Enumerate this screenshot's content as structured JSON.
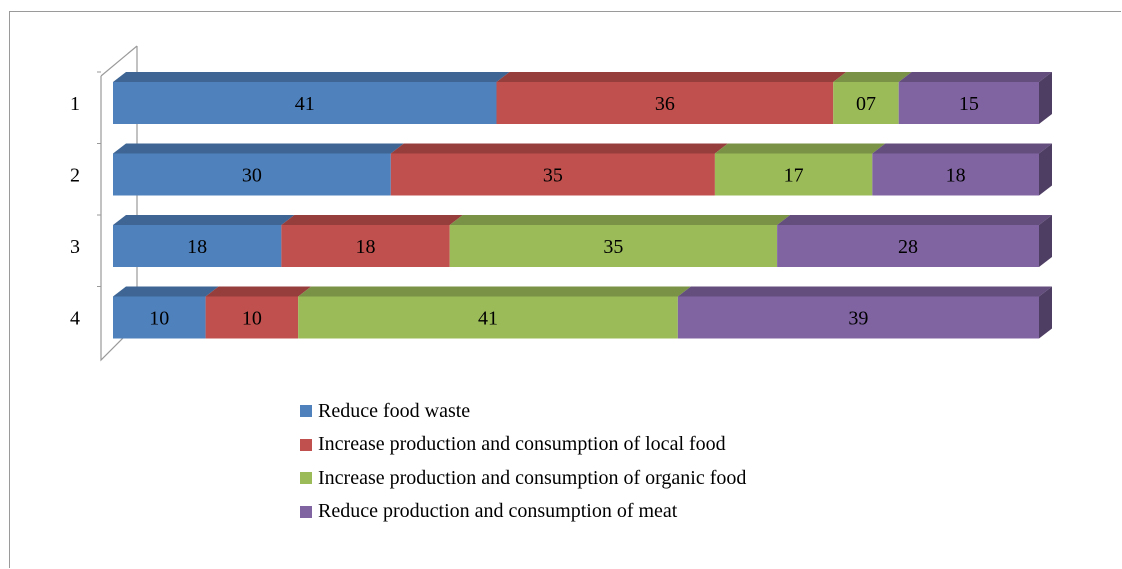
{
  "chart_data": {
    "type": "bar",
    "orientation": "horizontal",
    "stacked": true,
    "categories": [
      "1",
      "2",
      "3",
      "4"
    ],
    "series": [
      {
        "name": "Reduce food waste",
        "values": [
          41,
          30,
          18,
          10
        ],
        "labels": [
          "41",
          "30",
          "18",
          "10"
        ],
        "color": "#4f81bd"
      },
      {
        "name": "Increase production and consumption of local food",
        "values": [
          36,
          35,
          18,
          10
        ],
        "labels": [
          "36",
          "35",
          "18",
          "10"
        ],
        "color": "#c0504d"
      },
      {
        "name": "Increase production and consumption of organic food",
        "values": [
          7,
          17,
          35,
          41
        ],
        "labels": [
          "07",
          "17",
          "35",
          "41"
        ],
        "color": "#9bbb59"
      },
      {
        "name": "Reduce production and consumption of meat",
        "values": [
          15,
          18,
          28,
          39
        ],
        "labels": [
          "15",
          "18",
          "28",
          "39"
        ],
        "color": "#8064a2"
      }
    ],
    "legend_position": "bottom",
    "grid": false
  }
}
